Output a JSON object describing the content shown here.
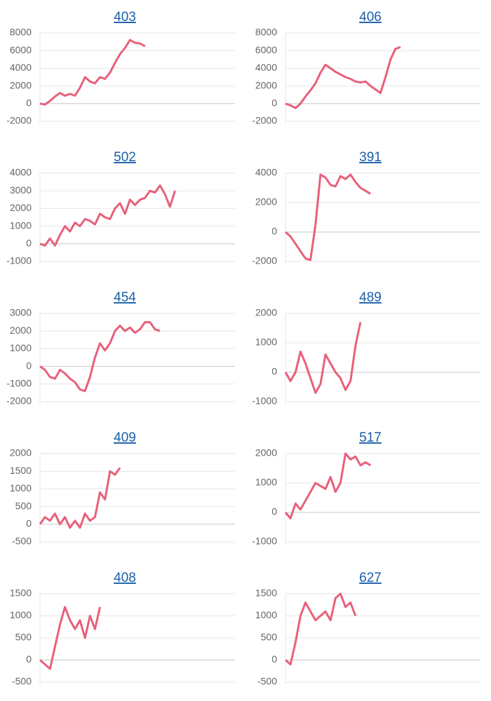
{
  "chart_data": [
    {
      "type": "line",
      "title": "403",
      "color": "#e8607a",
      "ylim": [
        -2000,
        8000
      ],
      "yticks": [
        -2000,
        0,
        2000,
        4000,
        6000,
        8000
      ],
      "grid": true,
      "values": [
        0,
        -100,
        300,
        800,
        1200,
        900,
        1100,
        900,
        1800,
        3000,
        2500,
        2300,
        3000,
        2800,
        3500,
        4600,
        5600,
        6300,
        7200,
        6900,
        6800,
        6500,
        null,
        null,
        null,
        null,
        null,
        null,
        null,
        null,
        null,
        null,
        null,
        null,
        null,
        null,
        null,
        null,
        null,
        null
      ]
    },
    {
      "type": "line",
      "title": "406",
      "color": "#e8607a",
      "ylim": [
        -2000,
        8000
      ],
      "yticks": [
        -2000,
        0,
        2000,
        4000,
        6000,
        8000
      ],
      "grid": true,
      "values": [
        0,
        -200,
        -500,
        0,
        800,
        1500,
        2300,
        3500,
        4400,
        4000,
        3600,
        3300,
        3000,
        2800,
        2500,
        2400,
        2500,
        2000,
        1600,
        1200,
        3000,
        5000,
        6200,
        6400,
        null,
        null,
        null,
        null,
        null,
        null,
        null,
        null,
        null,
        null,
        null,
        null,
        null,
        null,
        null,
        null
      ]
    },
    {
      "type": "line",
      "title": "502",
      "color": "#e8607a",
      "ylim": [
        -1000,
        4000
      ],
      "yticks": [
        -1000,
        0,
        1000,
        2000,
        3000,
        4000
      ],
      "grid": true,
      "values": [
        0,
        -100,
        300,
        -100,
        500,
        1000,
        700,
        1200,
        1000,
        1400,
        1300,
        1100,
        1700,
        1500,
        1400,
        2000,
        2300,
        1700,
        2500,
        2200,
        2500,
        2600,
        3000,
        2900,
        3300,
        2800,
        2100,
        3000,
        null,
        null,
        null,
        null,
        null,
        null,
        null,
        null,
        null,
        null,
        null,
        null
      ]
    },
    {
      "type": "line",
      "title": "391",
      "color": "#e8607a",
      "ylim": [
        -2000,
        4000
      ],
      "yticks": [
        -2000,
        0,
        2000,
        4000
      ],
      "grid": true,
      "values": [
        0,
        -300,
        -800,
        -1300,
        -1800,
        -1900,
        500,
        3900,
        3700,
        3200,
        3100,
        3800,
        3600,
        3900,
        3400,
        3000,
        2800,
        2600,
        null,
        null,
        null,
        null,
        null,
        null,
        null,
        null,
        null,
        null,
        null,
        null,
        null,
        null,
        null,
        null,
        null,
        null,
        null,
        null,
        null,
        null
      ]
    },
    {
      "type": "line",
      "title": "454",
      "color": "#e8607a",
      "ylim": [
        -2000,
        3000
      ],
      "yticks": [
        -2000,
        -1000,
        0,
        1000,
        2000,
        3000
      ],
      "grid": true,
      "values": [
        0,
        -200,
        -600,
        -700,
        -200,
        -400,
        -700,
        -900,
        -1300,
        -1400,
        -600,
        500,
        1300,
        900,
        1300,
        2000,
        2300,
        2000,
        2200,
        1900,
        2100,
        2500,
        2500,
        2100,
        2000,
        null,
        null,
        null,
        null,
        null,
        null,
        null,
        null,
        null,
        null,
        null,
        null,
        null,
        null,
        null
      ]
    },
    {
      "type": "line",
      "title": "489",
      "color": "#e8607a",
      "ylim": [
        -1000,
        2000
      ],
      "yticks": [
        -1000,
        0,
        1000,
        2000
      ],
      "grid": true,
      "values": [
        0,
        -300,
        0,
        700,
        300,
        -200,
        -700,
        -400,
        600,
        300,
        0,
        -200,
        -600,
        -300,
        900,
        1700,
        null,
        null,
        null,
        null,
        null,
        null,
        null,
        null,
        null,
        null,
        null,
        null,
        null,
        null,
        null,
        null,
        null,
        null,
        null,
        null,
        null,
        null,
        null,
        null
      ]
    },
    {
      "type": "line",
      "title": "409",
      "color": "#e8607a",
      "ylim": [
        -500,
        2000
      ],
      "yticks": [
        -500,
        0,
        500,
        1000,
        1500,
        2000
      ],
      "grid": true,
      "values": [
        0,
        200,
        100,
        300,
        0,
        200,
        -100,
        100,
        -100,
        300,
        100,
        200,
        900,
        700,
        1500,
        1400,
        1600,
        null,
        null,
        null,
        null,
        null,
        null,
        null,
        null,
        null,
        null,
        null,
        null,
        null,
        null,
        null,
        null,
        null,
        null,
        null,
        null,
        null,
        null,
        null
      ]
    },
    {
      "type": "line",
      "title": "517",
      "color": "#e8607a",
      "ylim": [
        -1000,
        2000
      ],
      "yticks": [
        -1000,
        0,
        1000,
        2000
      ],
      "grid": true,
      "values": [
        0,
        -200,
        300,
        100,
        400,
        700,
        1000,
        900,
        800,
        1200,
        700,
        1000,
        2000,
        1800,
        1900,
        1600,
        1700,
        1600,
        null,
        null,
        null,
        null,
        null,
        null,
        null,
        null,
        null,
        null,
        null,
        null,
        null,
        null,
        null,
        null,
        null,
        null,
        null,
        null,
        null,
        null
      ]
    },
    {
      "type": "line",
      "title": "408",
      "color": "#e8607a",
      "ylim": [
        -500,
        1500
      ],
      "yticks": [
        -500,
        0,
        500,
        1000,
        1500
      ],
      "grid": true,
      "values": [
        0,
        -100,
        -200,
        300,
        800,
        1200,
        900,
        700,
        900,
        500,
        1000,
        700,
        1200,
        null,
        null,
        null,
        null,
        null,
        null,
        null,
        null,
        null,
        null,
        null,
        null,
        null,
        null,
        null,
        null,
        null,
        null,
        null,
        null,
        null,
        null,
        null,
        null,
        null,
        null,
        null
      ]
    },
    {
      "type": "line",
      "title": "627",
      "color": "#e8607a",
      "ylim": [
        -500,
        1500
      ],
      "yticks": [
        -500,
        0,
        500,
        1000,
        1500
      ],
      "grid": true,
      "values": [
        0,
        -100,
        400,
        1000,
        1300,
        1100,
        900,
        1000,
        1100,
        900,
        1400,
        1500,
        1200,
        1300,
        1000,
        null,
        null,
        null,
        null,
        null,
        null,
        null,
        null,
        null,
        null,
        null,
        null,
        null,
        null,
        null,
        null,
        null,
        null,
        null,
        null,
        null,
        null,
        null,
        null,
        null
      ]
    }
  ]
}
